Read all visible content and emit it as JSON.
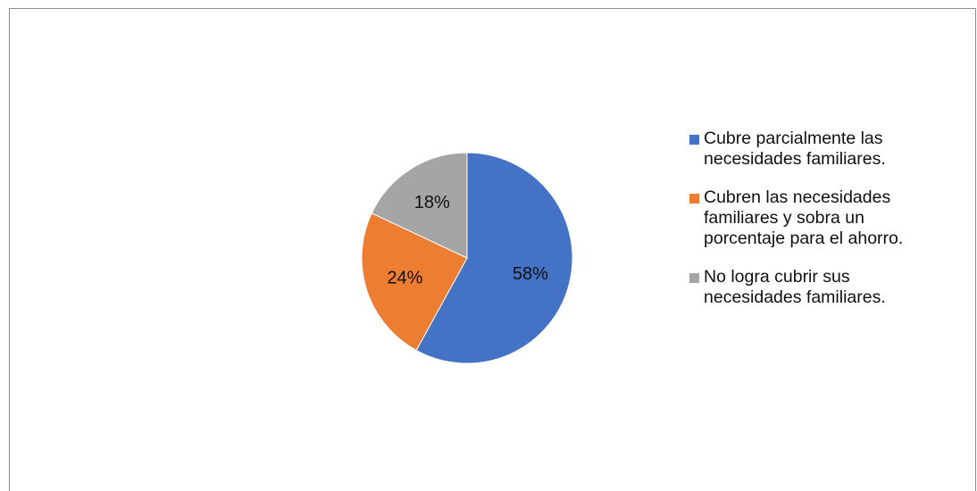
{
  "chart_data": {
    "type": "pie",
    "title": "",
    "slices": [
      {
        "label": "Cubre parcialmente las\nnecesidades familiares.",
        "value": 58,
        "display": "58%",
        "color": "#4472C4"
      },
      {
        "label": "Cubren las necesidades\nfamiliares y sobra un\nporcentaje para el ahorro.",
        "value": 24,
        "display": "24%",
        "color": "#ED7D31"
      },
      {
        "label": "No logra cubrir sus\nnecesidades familiares.",
        "value": 18,
        "display": "18%",
        "color": "#A5A5A5"
      }
    ],
    "legend_position": "right"
  }
}
